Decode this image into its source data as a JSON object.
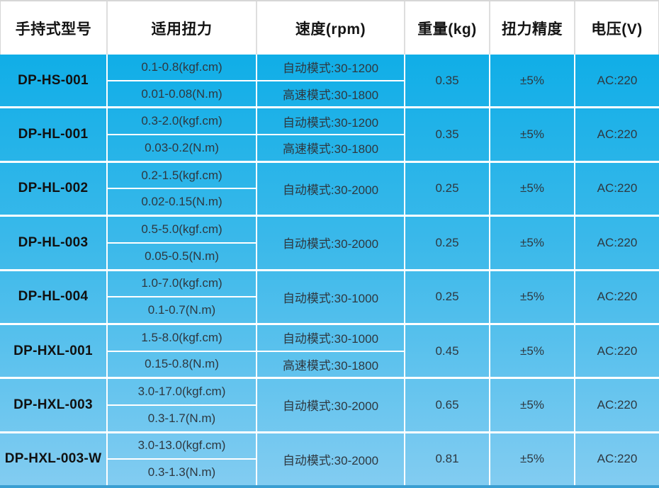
{
  "table": {
    "columns": [
      "手持式型号",
      "适用扭力",
      "速度(rpm)",
      "重量(kg)",
      "扭力精度",
      "电压(V)"
    ],
    "rows": [
      {
        "model": "DP-HS-001",
        "torque": [
          "0.1-0.8(kgf.cm)",
          "0.01-0.08(N.m)"
        ],
        "speed": [
          "自动模式:30-1200",
          "高速模式:30-1800"
        ],
        "weight": "0.35",
        "accuracy": "±5%",
        "voltage": "AC:220"
      },
      {
        "model": "DP-HL-001",
        "torque": [
          "0.3-2.0(kgf.cm)",
          "0.03-0.2(N.m)"
        ],
        "speed": [
          "自动模式:30-1200",
          "高速模式:30-1800"
        ],
        "weight": "0.35",
        "accuracy": "±5%",
        "voltage": "AC:220"
      },
      {
        "model": "DP-HL-002",
        "torque": [
          "0.2-1.5(kgf.cm)",
          "0.02-0.15(N.m)"
        ],
        "speed": [
          "自动模式:30-2000"
        ],
        "weight": "0.25",
        "accuracy": "±5%",
        "voltage": "AC:220"
      },
      {
        "model": "DP-HL-003",
        "torque": [
          "0.5-5.0(kgf.cm)",
          "0.05-0.5(N.m)"
        ],
        "speed": [
          "自动模式:30-2000"
        ],
        "weight": "0.25",
        "accuracy": "±5%",
        "voltage": "AC:220"
      },
      {
        "model": "DP-HL-004",
        "torque": [
          "1.0-7.0(kgf.cm)",
          "0.1-0.7(N.m)"
        ],
        "speed": [
          "自动模式:30-1000"
        ],
        "weight": "0.25",
        "accuracy": "±5%",
        "voltage": "AC:220"
      },
      {
        "model": "DP-HXL-001",
        "torque": [
          "1.5-8.0(kgf.cm)",
          "0.15-0.8(N.m)"
        ],
        "speed": [
          "自动模式:30-1000",
          "高速模式:30-1800"
        ],
        "weight": "0.45",
        "accuracy": "±5%",
        "voltage": "AC:220"
      },
      {
        "model": "DP-HXL-003",
        "torque": [
          "3.0-17.0(kgf.cm)",
          "0.3-1.7(N.m)"
        ],
        "speed": [
          "自动模式:30-2000"
        ],
        "weight": "0.65",
        "accuracy": "±5%",
        "voltage": "AC:220"
      },
      {
        "model": "DP-HXL-003-W",
        "torque": [
          "3.0-13.0(kgf.cm)",
          "0.3-1.3(N.m)"
        ],
        "speed": [
          "自动模式:30-2000"
        ],
        "weight": "0.81",
        "accuracy": "±5%",
        "voltage": "AC:220"
      }
    ]
  },
  "colors": {
    "body_gradient_top": "#10aee7",
    "body_gradient_bottom": "#82ccf1",
    "grid_line": "#ffffff",
    "header_background": "#ffffff",
    "header_border": "#d6d6d6",
    "bottom_edge": "#3a9ed2",
    "header_text": "#141414",
    "cell_text": "#2e3840"
  }
}
